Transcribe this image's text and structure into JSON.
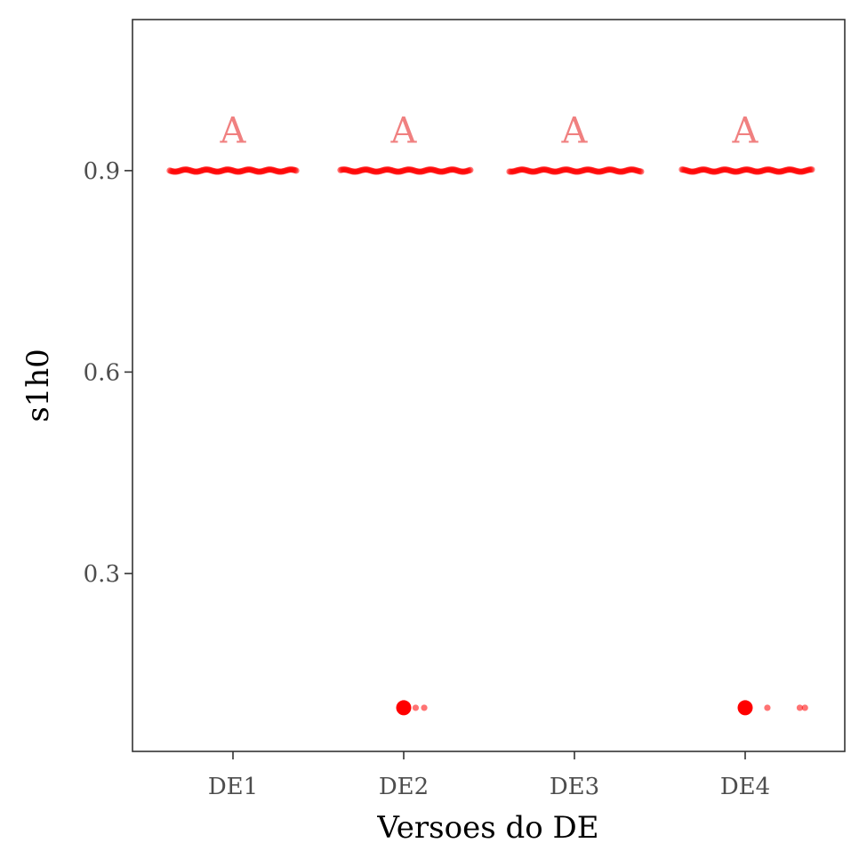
{
  "chart_data": {
    "type": "scatter",
    "title": "",
    "xlabel": "Versoes do DE",
    "ylabel": "s1h0",
    "categories": [
      "DE1",
      "DE2",
      "DE3",
      "DE4"
    ],
    "ylim": [
      0.035,
      1.125
    ],
    "yticks": [
      0.3,
      0.6,
      0.9
    ],
    "ytick_labels": [
      "0.3",
      "0.6",
      "0.9"
    ],
    "grid": false,
    "legend": "none",
    "point_color": "#ff0000",
    "letter_color": "#f08080",
    "groups": [
      {
        "category": "DE1",
        "main_value": 0.9,
        "jitter_range": [
          -0.37,
          0.37
        ],
        "outliers": [],
        "group_letter": "A",
        "letter_y": 0.96
      },
      {
        "category": "DE2",
        "main_value": 0.9,
        "jitter_range": [
          -0.37,
          0.39
        ],
        "outliers": [
          {
            "value": 0.1,
            "offsets": [
              0.07,
              0.12
            ]
          }
        ],
        "summary_outlier": 0.1,
        "group_letter": "A",
        "letter_y": 0.96
      },
      {
        "category": "DE3",
        "main_value": 0.9,
        "jitter_range": [
          -0.38,
          0.39
        ],
        "outliers": [],
        "group_letter": "A",
        "letter_y": 0.96
      },
      {
        "category": "DE4",
        "main_value": 0.9,
        "jitter_range": [
          -0.37,
          0.39
        ],
        "outliers": [
          {
            "value": 0.1,
            "offsets": [
              0.13,
              0.32,
              0.35
            ]
          }
        ],
        "summary_outlier": 0.1,
        "group_letter": "A",
        "letter_y": 0.96
      }
    ]
  }
}
